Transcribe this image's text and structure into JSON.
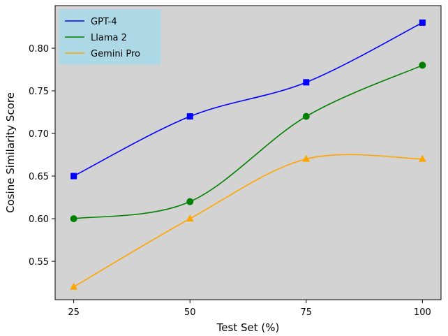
{
  "chart_data": {
    "type": "line",
    "xlabel": "Test Set (%)",
    "ylabel": "Cosine Similarity Score",
    "x": [
      25,
      50,
      75,
      100
    ],
    "x_ticks": [
      "25",
      "50",
      "75",
      "100"
    ],
    "y_ticks": [
      "0.55",
      "0.60",
      "0.65",
      "0.70",
      "0.75",
      "0.80"
    ],
    "xlim": [
      21,
      104
    ],
    "ylim": [
      0.505,
      0.85
    ],
    "background": "#d3d3d3",
    "grid": false,
    "legend_position": "top-left",
    "legend_background": "#add8e6",
    "series": [
      {
        "name": "GPT-4",
        "color": "#0000ff",
        "marker": "square",
        "values": [
          0.65,
          0.72,
          0.76,
          0.83
        ]
      },
      {
        "name": "Llama 2",
        "color": "#008000",
        "marker": "circle",
        "values": [
          0.6,
          0.62,
          0.72,
          0.78
        ]
      },
      {
        "name": "Gemini Pro",
        "color": "#ffa500",
        "marker": "triangle",
        "values": [
          0.52,
          0.6,
          0.67,
          0.67
        ]
      }
    ]
  }
}
